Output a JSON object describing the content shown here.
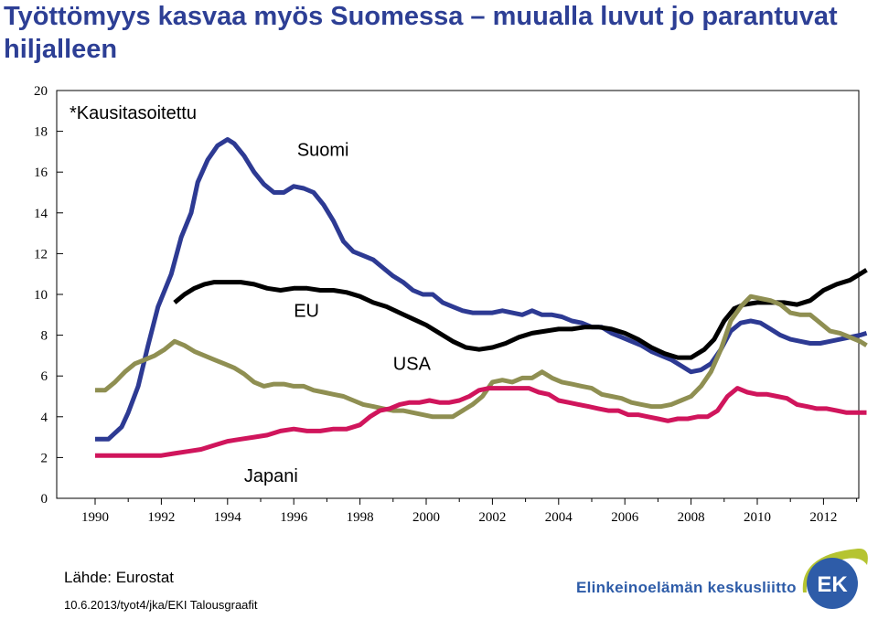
{
  "title": "Työttömyys kasvaa myös Suomessa – muualla luvut jo parantuvat hiljalleen",
  "source": "Lähde: Eurostat",
  "footnote": "10.6.2013/tyot4/jka/EKI Talousgraafit",
  "brand_name": "Elinkeinoelämän keskusliitto",
  "logo_text": "EK",
  "colors": {
    "title": "#2d3f95",
    "suomi": "#2d3a93",
    "eu": "#000000",
    "usa": "#8f8f52",
    "japani": "#d0155c",
    "brand": "#2e5ca8",
    "logo_green": "#b5c431",
    "logo_blue": "#2e5ca8"
  },
  "chart_data": {
    "type": "line",
    "annotation": "*Kausitasoitettu",
    "x_ticks": [
      "1990",
      "1992",
      "1994",
      "1996",
      "1998",
      "2000",
      "2002",
      "2004",
      "2006",
      "2008",
      "2010",
      "2012"
    ],
    "y_ticks": [
      "0",
      "2",
      "4",
      "6",
      "8",
      "10",
      "12",
      "14",
      "16",
      "18",
      "20"
    ],
    "xlim": [
      1989,
      2013.7
    ],
    "ylim": [
      0,
      20
    ],
    "grid": false,
    "series": [
      {
        "name": "Suomi",
        "color": "#2d3a93",
        "points": [
          [
            1990.0,
            2.9
          ],
          [
            1990.4,
            2.9
          ],
          [
            1990.8,
            3.5
          ],
          [
            1991.0,
            4.2
          ],
          [
            1991.3,
            5.5
          ],
          [
            1991.6,
            7.5
          ],
          [
            1991.9,
            9.4
          ],
          [
            1992.3,
            11.0
          ],
          [
            1992.6,
            12.8
          ],
          [
            1992.9,
            14.0
          ],
          [
            1993.1,
            15.5
          ],
          [
            1993.4,
            16.6
          ],
          [
            1993.7,
            17.3
          ],
          [
            1994.0,
            17.6
          ],
          [
            1994.2,
            17.4
          ],
          [
            1994.5,
            16.8
          ],
          [
            1994.8,
            16.0
          ],
          [
            1995.1,
            15.4
          ],
          [
            1995.4,
            15.0
          ],
          [
            1995.7,
            15.0
          ],
          [
            1996.0,
            15.3
          ],
          [
            1996.3,
            15.2
          ],
          [
            1996.6,
            15.0
          ],
          [
            1996.9,
            14.4
          ],
          [
            1997.2,
            13.6
          ],
          [
            1997.5,
            12.6
          ],
          [
            1997.8,
            12.1
          ],
          [
            1998.1,
            11.9
          ],
          [
            1998.4,
            11.7
          ],
          [
            1998.7,
            11.3
          ],
          [
            1999.0,
            10.9
          ],
          [
            1999.3,
            10.6
          ],
          [
            1999.6,
            10.2
          ],
          [
            1999.9,
            10.0
          ],
          [
            2000.2,
            10.0
          ],
          [
            2000.5,
            9.6
          ],
          [
            2000.8,
            9.4
          ],
          [
            2001.1,
            9.2
          ],
          [
            2001.4,
            9.1
          ],
          [
            2001.7,
            9.1
          ],
          [
            2002.0,
            9.1
          ],
          [
            2002.3,
            9.2
          ],
          [
            2002.6,
            9.1
          ],
          [
            2002.9,
            9.0
          ],
          [
            2003.2,
            9.2
          ],
          [
            2003.5,
            9.0
          ],
          [
            2003.8,
            9.0
          ],
          [
            2004.1,
            8.9
          ],
          [
            2004.4,
            8.7
          ],
          [
            2004.7,
            8.6
          ],
          [
            2005.0,
            8.4
          ],
          [
            2005.3,
            8.4
          ],
          [
            2005.6,
            8.1
          ],
          [
            2005.9,
            7.9
          ],
          [
            2006.2,
            7.7
          ],
          [
            2006.5,
            7.5
          ],
          [
            2006.8,
            7.2
          ],
          [
            2007.1,
            7.0
          ],
          [
            2007.4,
            6.8
          ],
          [
            2007.7,
            6.5
          ],
          [
            2008.0,
            6.2
          ],
          [
            2008.3,
            6.3
          ],
          [
            2008.6,
            6.6
          ],
          [
            2008.9,
            7.3
          ],
          [
            2009.2,
            8.2
          ],
          [
            2009.5,
            8.6
          ],
          [
            2009.8,
            8.7
          ],
          [
            2010.1,
            8.6
          ],
          [
            2010.4,
            8.3
          ],
          [
            2010.7,
            8.0
          ],
          [
            2011.0,
            7.8
          ],
          [
            2011.3,
            7.7
          ],
          [
            2011.6,
            7.6
          ],
          [
            2011.9,
            7.6
          ],
          [
            2012.2,
            7.7
          ],
          [
            2012.5,
            7.8
          ],
          [
            2012.8,
            7.9
          ],
          [
            2013.1,
            8.0
          ],
          [
            2013.3,
            8.1
          ]
        ]
      },
      {
        "name": "EU",
        "color": "#000000",
        "points": [
          [
            1992.4,
            9.6
          ],
          [
            1992.7,
            10.0
          ],
          [
            1993.0,
            10.3
          ],
          [
            1993.3,
            10.5
          ],
          [
            1993.6,
            10.6
          ],
          [
            1994.0,
            10.6
          ],
          [
            1994.4,
            10.6
          ],
          [
            1994.8,
            10.5
          ],
          [
            1995.2,
            10.3
          ],
          [
            1995.6,
            10.2
          ],
          [
            1996.0,
            10.3
          ],
          [
            1996.4,
            10.3
          ],
          [
            1996.8,
            10.2
          ],
          [
            1997.2,
            10.2
          ],
          [
            1997.6,
            10.1
          ],
          [
            1998.0,
            9.9
          ],
          [
            1998.4,
            9.6
          ],
          [
            1998.8,
            9.4
          ],
          [
            1999.2,
            9.1
          ],
          [
            1999.6,
            8.8
          ],
          [
            2000.0,
            8.5
          ],
          [
            2000.4,
            8.1
          ],
          [
            2000.8,
            7.7
          ],
          [
            2001.2,
            7.4
          ],
          [
            2001.6,
            7.3
          ],
          [
            2002.0,
            7.4
          ],
          [
            2002.4,
            7.6
          ],
          [
            2002.8,
            7.9
          ],
          [
            2003.2,
            8.1
          ],
          [
            2003.6,
            8.2
          ],
          [
            2004.0,
            8.3
          ],
          [
            2004.4,
            8.3
          ],
          [
            2004.8,
            8.4
          ],
          [
            2005.2,
            8.4
          ],
          [
            2005.6,
            8.3
          ],
          [
            2006.0,
            8.1
          ],
          [
            2006.4,
            7.8
          ],
          [
            2006.8,
            7.4
          ],
          [
            2007.2,
            7.1
          ],
          [
            2007.6,
            6.9
          ],
          [
            2008.0,
            6.9
          ],
          [
            2008.4,
            7.3
          ],
          [
            2008.7,
            7.8
          ],
          [
            2009.0,
            8.7
          ],
          [
            2009.3,
            9.3
          ],
          [
            2009.6,
            9.5
          ],
          [
            2010.0,
            9.6
          ],
          [
            2010.4,
            9.6
          ],
          [
            2010.8,
            9.6
          ],
          [
            2011.2,
            9.5
          ],
          [
            2011.6,
            9.7
          ],
          [
            2012.0,
            10.2
          ],
          [
            2012.4,
            10.5
          ],
          [
            2012.8,
            10.7
          ],
          [
            2013.1,
            11.0
          ],
          [
            2013.3,
            11.2
          ]
        ]
      },
      {
        "name": "USA",
        "color": "#8f8f52",
        "points": [
          [
            1990.0,
            5.3
          ],
          [
            1990.3,
            5.3
          ],
          [
            1990.6,
            5.7
          ],
          [
            1990.9,
            6.2
          ],
          [
            1991.2,
            6.6
          ],
          [
            1991.5,
            6.8
          ],
          [
            1991.8,
            7.0
          ],
          [
            1992.1,
            7.3
          ],
          [
            1992.4,
            7.7
          ],
          [
            1992.7,
            7.5
          ],
          [
            1993.0,
            7.2
          ],
          [
            1993.3,
            7.0
          ],
          [
            1993.6,
            6.8
          ],
          [
            1993.9,
            6.6
          ],
          [
            1994.2,
            6.4
          ],
          [
            1994.5,
            6.1
          ],
          [
            1994.8,
            5.7
          ],
          [
            1995.1,
            5.5
          ],
          [
            1995.4,
            5.6
          ],
          [
            1995.7,
            5.6
          ],
          [
            1996.0,
            5.5
          ],
          [
            1996.3,
            5.5
          ],
          [
            1996.6,
            5.3
          ],
          [
            1996.9,
            5.2
          ],
          [
            1997.2,
            5.1
          ],
          [
            1997.5,
            5.0
          ],
          [
            1997.8,
            4.8
          ],
          [
            1998.1,
            4.6
          ],
          [
            1998.4,
            4.5
          ],
          [
            1998.7,
            4.4
          ],
          [
            1999.0,
            4.3
          ],
          [
            1999.3,
            4.3
          ],
          [
            1999.6,
            4.2
          ],
          [
            1999.9,
            4.1
          ],
          [
            2000.2,
            4.0
          ],
          [
            2000.5,
            4.0
          ],
          [
            2000.8,
            4.0
          ],
          [
            2001.1,
            4.3
          ],
          [
            2001.4,
            4.6
          ],
          [
            2001.7,
            5.0
          ],
          [
            2002.0,
            5.7
          ],
          [
            2002.3,
            5.8
          ],
          [
            2002.6,
            5.7
          ],
          [
            2002.9,
            5.9
          ],
          [
            2003.2,
            5.9
          ],
          [
            2003.5,
            6.2
          ],
          [
            2003.8,
            5.9
          ],
          [
            2004.1,
            5.7
          ],
          [
            2004.4,
            5.6
          ],
          [
            2004.7,
            5.5
          ],
          [
            2005.0,
            5.4
          ],
          [
            2005.3,
            5.1
          ],
          [
            2005.6,
            5.0
          ],
          [
            2005.9,
            4.9
          ],
          [
            2006.2,
            4.7
          ],
          [
            2006.5,
            4.6
          ],
          [
            2006.8,
            4.5
          ],
          [
            2007.1,
            4.5
          ],
          [
            2007.4,
            4.6
          ],
          [
            2007.7,
            4.8
          ],
          [
            2008.0,
            5.0
          ],
          [
            2008.3,
            5.5
          ],
          [
            2008.6,
            6.2
          ],
          [
            2008.9,
            7.3
          ],
          [
            2009.2,
            8.7
          ],
          [
            2009.5,
            9.4
          ],
          [
            2009.8,
            9.9
          ],
          [
            2010.1,
            9.8
          ],
          [
            2010.4,
            9.7
          ],
          [
            2010.7,
            9.5
          ],
          [
            2011.0,
            9.1
          ],
          [
            2011.3,
            9.0
          ],
          [
            2011.6,
            9.0
          ],
          [
            2011.9,
            8.6
          ],
          [
            2012.2,
            8.2
          ],
          [
            2012.5,
            8.1
          ],
          [
            2012.8,
            7.9
          ],
          [
            2013.1,
            7.7
          ],
          [
            2013.3,
            7.5
          ]
        ]
      },
      {
        "name": "Japani",
        "color": "#d0155c",
        "points": [
          [
            1990.0,
            2.1
          ],
          [
            1990.3,
            2.1
          ],
          [
            1990.6,
            2.1
          ],
          [
            1990.9,
            2.1
          ],
          [
            1991.2,
            2.1
          ],
          [
            1991.6,
            2.1
          ],
          [
            1992.0,
            2.1
          ],
          [
            1992.4,
            2.2
          ],
          [
            1992.8,
            2.3
          ],
          [
            1993.2,
            2.4
          ],
          [
            1993.6,
            2.6
          ],
          [
            1994.0,
            2.8
          ],
          [
            1994.4,
            2.9
          ],
          [
            1994.8,
            3.0
          ],
          [
            1995.2,
            3.1
          ],
          [
            1995.6,
            3.3
          ],
          [
            1996.0,
            3.4
          ],
          [
            1996.4,
            3.3
          ],
          [
            1996.8,
            3.3
          ],
          [
            1997.2,
            3.4
          ],
          [
            1997.6,
            3.4
          ],
          [
            1998.0,
            3.6
          ],
          [
            1998.3,
            4.0
          ],
          [
            1998.6,
            4.3
          ],
          [
            1998.9,
            4.4
          ],
          [
            1999.2,
            4.6
          ],
          [
            1999.5,
            4.7
          ],
          [
            1999.8,
            4.7
          ],
          [
            2000.1,
            4.8
          ],
          [
            2000.4,
            4.7
          ],
          [
            2000.7,
            4.7
          ],
          [
            2001.0,
            4.8
          ],
          [
            2001.3,
            5.0
          ],
          [
            2001.6,
            5.3
          ],
          [
            2001.9,
            5.4
          ],
          [
            2002.2,
            5.4
          ],
          [
            2002.5,
            5.4
          ],
          [
            2002.8,
            5.4
          ],
          [
            2003.1,
            5.4
          ],
          [
            2003.4,
            5.2
          ],
          [
            2003.7,
            5.1
          ],
          [
            2004.0,
            4.8
          ],
          [
            2004.3,
            4.7
          ],
          [
            2004.6,
            4.6
          ],
          [
            2004.9,
            4.5
          ],
          [
            2005.2,
            4.4
          ],
          [
            2005.5,
            4.3
          ],
          [
            2005.8,
            4.3
          ],
          [
            2006.1,
            4.1
          ],
          [
            2006.4,
            4.1
          ],
          [
            2006.7,
            4.0
          ],
          [
            2007.0,
            3.9
          ],
          [
            2007.3,
            3.8
          ],
          [
            2007.6,
            3.9
          ],
          [
            2007.9,
            3.9
          ],
          [
            2008.2,
            4.0
          ],
          [
            2008.5,
            4.0
          ],
          [
            2008.8,
            4.3
          ],
          [
            2009.1,
            5.0
          ],
          [
            2009.4,
            5.4
          ],
          [
            2009.7,
            5.2
          ],
          [
            2010.0,
            5.1
          ],
          [
            2010.3,
            5.1
          ],
          [
            2010.6,
            5.0
          ],
          [
            2010.9,
            4.9
          ],
          [
            2011.2,
            4.6
          ],
          [
            2011.5,
            4.5
          ],
          [
            2011.8,
            4.4
          ],
          [
            2012.1,
            4.4
          ],
          [
            2012.4,
            4.3
          ],
          [
            2012.7,
            4.2
          ],
          [
            2013.0,
            4.2
          ],
          [
            2013.3,
            4.2
          ]
        ]
      }
    ],
    "series_labels": [
      {
        "text": "Suomi",
        "x": 1996.1,
        "y": 16.8
      },
      {
        "text": "EU",
        "x": 1996.0,
        "y": 8.9
      },
      {
        "text": "USA",
        "x": 1999.0,
        "y": 6.3
      },
      {
        "text": "Japani",
        "x": 1994.5,
        "y": 0.8
      }
    ]
  }
}
